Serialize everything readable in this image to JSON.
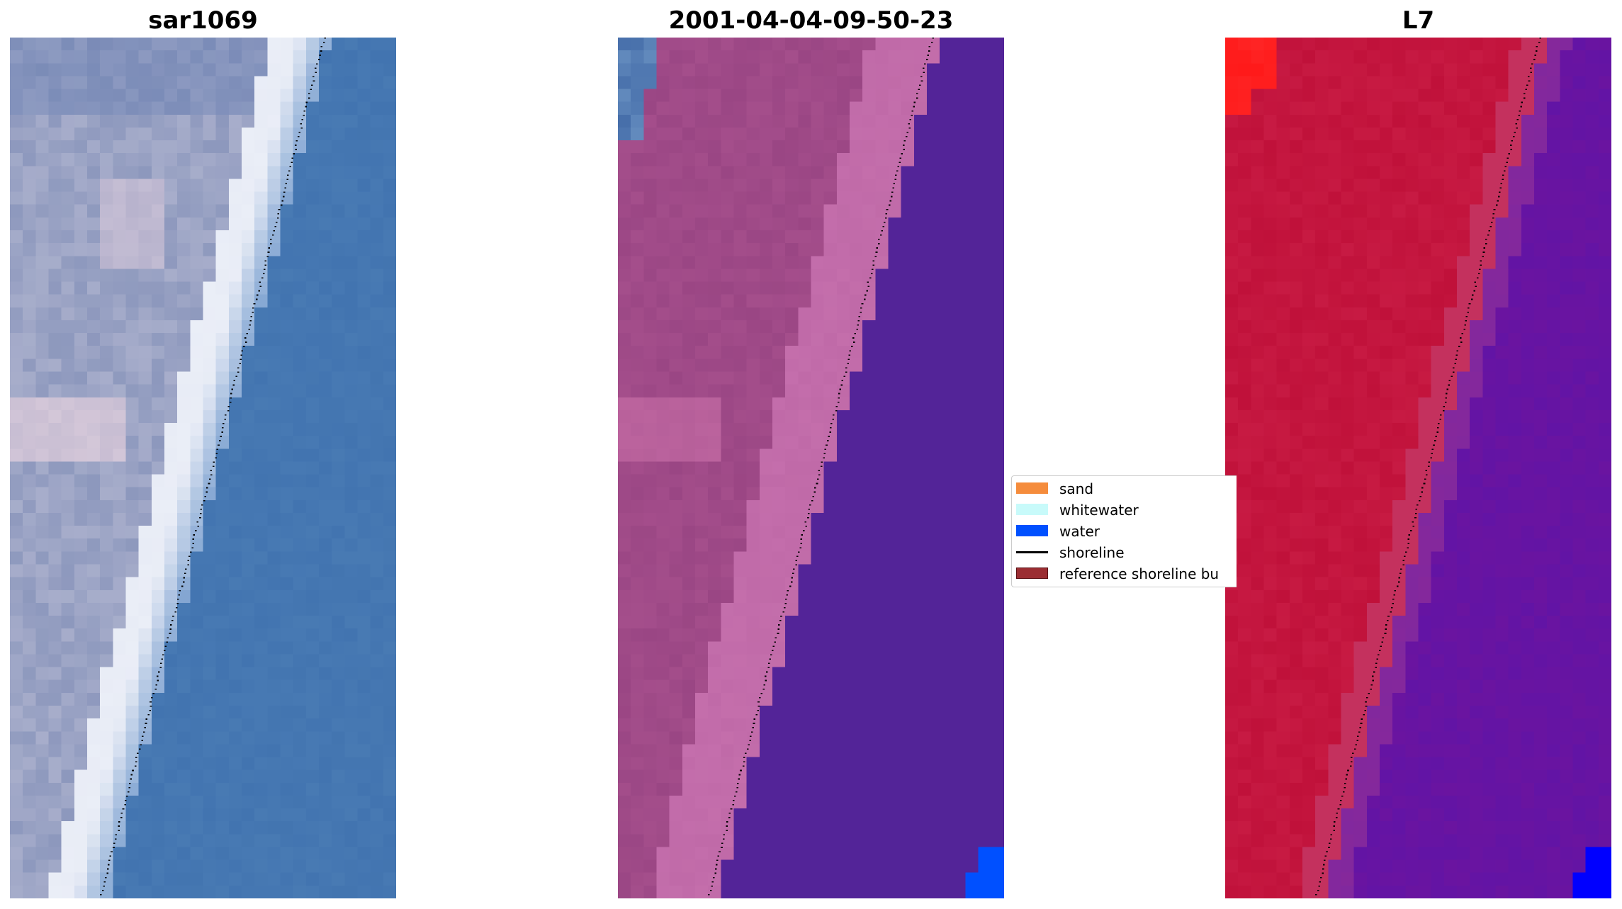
{
  "panels": [
    {
      "title": "sar1069",
      "style": "rgb"
    },
    {
      "title": "2001-04-04-09-50-23",
      "style": "classified"
    },
    {
      "title": "L7",
      "style": "index"
    }
  ],
  "legend": {
    "items": [
      {
        "label": "sand",
        "kind": "patch",
        "color": "#f58c3c"
      },
      {
        "label": "whitewater",
        "kind": "patch",
        "color": "#c8fafa"
      },
      {
        "label": "water",
        "kind": "patch",
        "color": "#0050ff"
      },
      {
        "label": "shoreline",
        "kind": "line",
        "color": "#000000"
      },
      {
        "label": "reference shoreline bu",
        "kind": "patch",
        "color": "#9b2d32"
      }
    ]
  },
  "colors": {
    "water_rgb": "#4274b0",
    "surf_white": "#e8ecf6",
    "land_rgb": "#8d98bd",
    "classified_water": "#532498",
    "classified_land": "#9a4684",
    "classified_beach": "#c06aa8",
    "classified_blue": "#0050ff",
    "index_land": "#c0113a",
    "index_water": "#6a14a0",
    "index_red": "#ff1a1a",
    "index_blue": "#0000ff"
  }
}
